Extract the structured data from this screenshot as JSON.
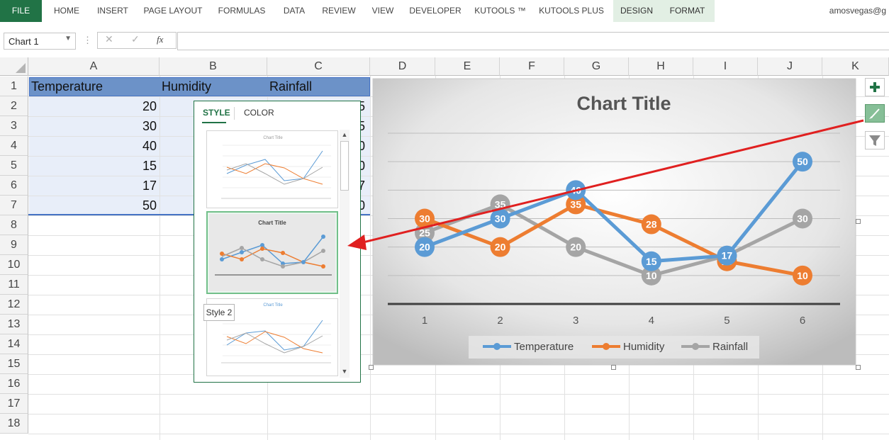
{
  "ribbon": {
    "tabs": [
      "FILE",
      "HOME",
      "INSERT",
      "PAGE LAYOUT",
      "FORMULAS",
      "DATA",
      "REVIEW",
      "VIEW",
      "DEVELOPER",
      "KUTOOLS ™",
      "KUTOOLS PLUS",
      "DESIGN",
      "FORMAT"
    ],
    "user": "amosvegas@g"
  },
  "formula_bar": {
    "name_box": "Chart 1",
    "cancel_icon": "✕",
    "enter_icon": "✓",
    "fx_label": "fx",
    "formula": ""
  },
  "columns": [
    "A",
    "B",
    "C",
    "D",
    "E",
    "F",
    "G",
    "H",
    "I",
    "J",
    "K"
  ],
  "rows": [
    "1",
    "2",
    "3",
    "4",
    "5",
    "6",
    "7",
    "8",
    "9",
    "10",
    "11",
    "12",
    "13",
    "14",
    "15",
    "16",
    "17",
    "18"
  ],
  "sheet": {
    "headers": [
      "Temperature",
      "Humidity",
      "Rainfall"
    ],
    "temperature": [
      "20",
      "30",
      "40",
      "15",
      "17",
      "50"
    ],
    "c_partial": [
      "5",
      "5",
      "0",
      "0",
      "7",
      "0"
    ]
  },
  "style_panel": {
    "tab_style": "STYLE",
    "tab_color": "COLOR",
    "thumb_title": "Chart Title",
    "thumb_title_small": "Chart Title",
    "tooltip": "Style 2"
  },
  "chart_data": {
    "type": "line",
    "title": "Chart Title",
    "categories": [
      "1",
      "2",
      "3",
      "4",
      "5",
      "6"
    ],
    "series": [
      {
        "name": "Temperature",
        "values": [
          20,
          30,
          40,
          15,
          17,
          50
        ],
        "color": "#5b9bd5"
      },
      {
        "name": "Humidity",
        "values": [
          30,
          20,
          35,
          28,
          15,
          10
        ],
        "color": "#ed7d31"
      },
      {
        "name": "Rainfall",
        "values": [
          25,
          35,
          20,
          10,
          17,
          30
        ],
        "color": "#a5a5a5"
      }
    ],
    "ylim": [
      0,
      60
    ],
    "grid": true,
    "legend": "bottom"
  },
  "chart_buttons": {
    "add": "chart-elements",
    "style": "chart-styles",
    "filter": "chart-filters"
  },
  "colors": {
    "excel_green": "#217346",
    "selection": "#e8eef9",
    "header_fill": "#6c92c8",
    "arrow": "#e02020"
  }
}
